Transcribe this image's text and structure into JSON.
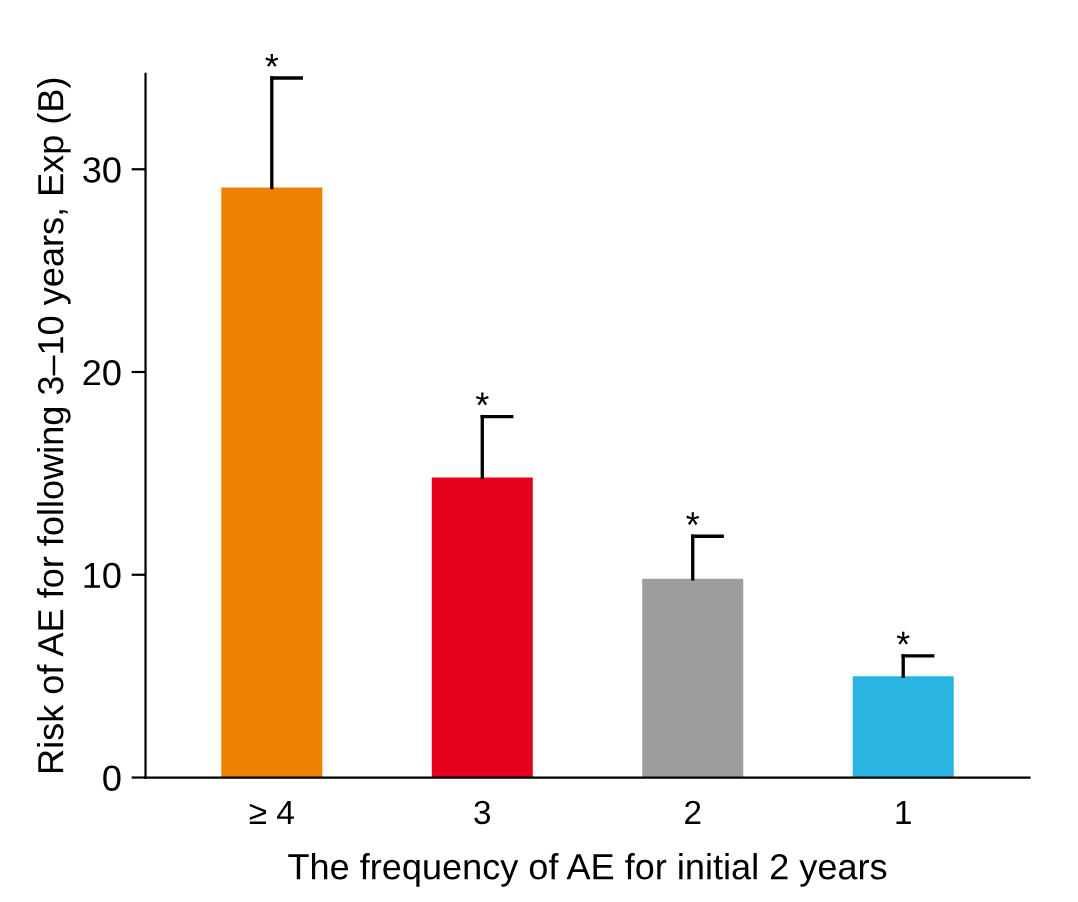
{
  "chart_data": {
    "type": "bar",
    "xlabel": "The frequency of AE for initial 2 years",
    "ylabel": "Risk of AE for following 3–10 years, Exp (B)",
    "categories": [
      "≥ 4",
      "3",
      "2",
      "1"
    ],
    "values": [
      29.1,
      14.8,
      9.8,
      5.0
    ],
    "colors": [
      "#f08000",
      "#e5001b",
      "#9d9d9d",
      "#29b4e2"
    ],
    "errors": [
      [
        29.1,
        34.5
      ],
      [
        14.8,
        17.8
      ],
      [
        9.8,
        11.9
      ],
      [
        5.0,
        6.0
      ]
    ],
    "ylim": [
      0,
      34.7
    ],
    "yticks": [
      0,
      10,
      20,
      30
    ],
    "grid": false,
    "annotations": [
      "*",
      "*",
      "*",
      "*"
    ]
  }
}
